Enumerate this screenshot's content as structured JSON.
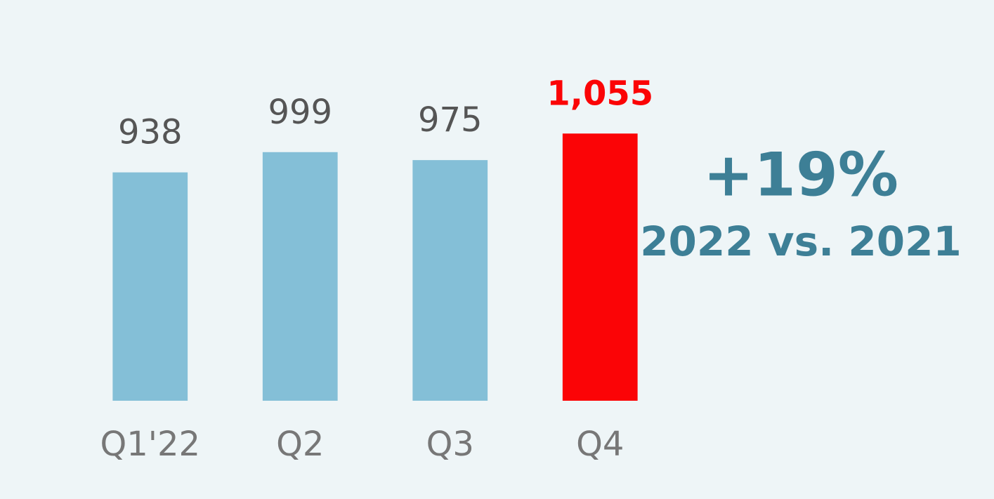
{
  "chart_data": {
    "type": "bar",
    "categories": [
      "Q1'22",
      "Q2",
      "Q3",
      "Q4"
    ],
    "values": [
      938,
      999,
      975,
      1055
    ],
    "value_labels": [
      "938",
      "999",
      "975",
      "1,055"
    ],
    "colors": [
      "#84bfd7",
      "#84bfd7",
      "#84bfd7",
      "#fb0406"
    ],
    "value_label_colors": [
      "#555555",
      "#555555",
      "#555555",
      "#fb0406"
    ],
    "ylim": [
      250,
      1100
    ],
    "annotations": [
      "+19%",
      "2022 vs. 2021"
    ]
  }
}
